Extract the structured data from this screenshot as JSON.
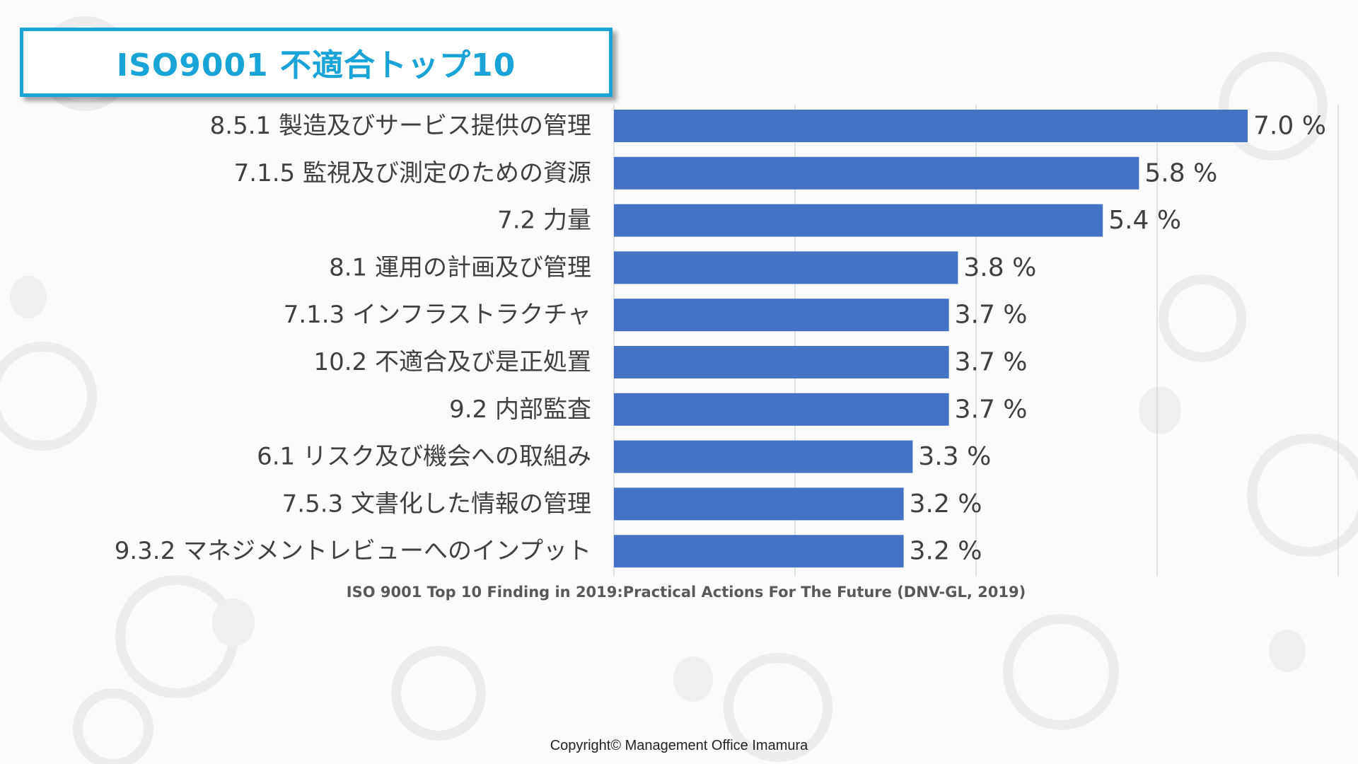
{
  "title": "ISO9001 不適合トップ10",
  "source": "ISO 9001 Top 10 Finding in 2019:Practical Actions For The Future (DNV-GL, 2019)",
  "copyright": "Copyright© Management Office Imamura",
  "colors": {
    "bar": "#4472c4",
    "title_accent": "#1aa3d6",
    "label_text": "#404040",
    "gridline": "#d9d9d9"
  },
  "chart_data": {
    "type": "bar",
    "orientation": "horizontal",
    "categories": [
      "8.5.1 製造及びサービス提供の管理",
      "7.1.5 監視及び測定のための資源",
      "7.2 力量",
      "8.1 運用の計画及び管理",
      "7.1.3 インフラストラクチャ",
      "10.2 不適合及び是正処置",
      "9.2 内部監査",
      "6.1 リスク及び機会への取組み",
      "7.5.3 文書化した情報の管理",
      "9.3.2 マネジメントレビューへのインプット"
    ],
    "values": [
      7.0,
      5.8,
      5.4,
      3.8,
      3.7,
      3.7,
      3.7,
      3.3,
      3.2,
      3.2
    ],
    "data_labels": [
      "7.0 %",
      "5.8 %",
      "5.4 %",
      "3.8 %",
      "3.7 %",
      "3.7 %",
      "3.7 %",
      "3.3 %",
      "3.2 %",
      "3.2 %"
    ],
    "unit": "%",
    "xlim": [
      0,
      8
    ],
    "grid": true,
    "legend": "none"
  }
}
